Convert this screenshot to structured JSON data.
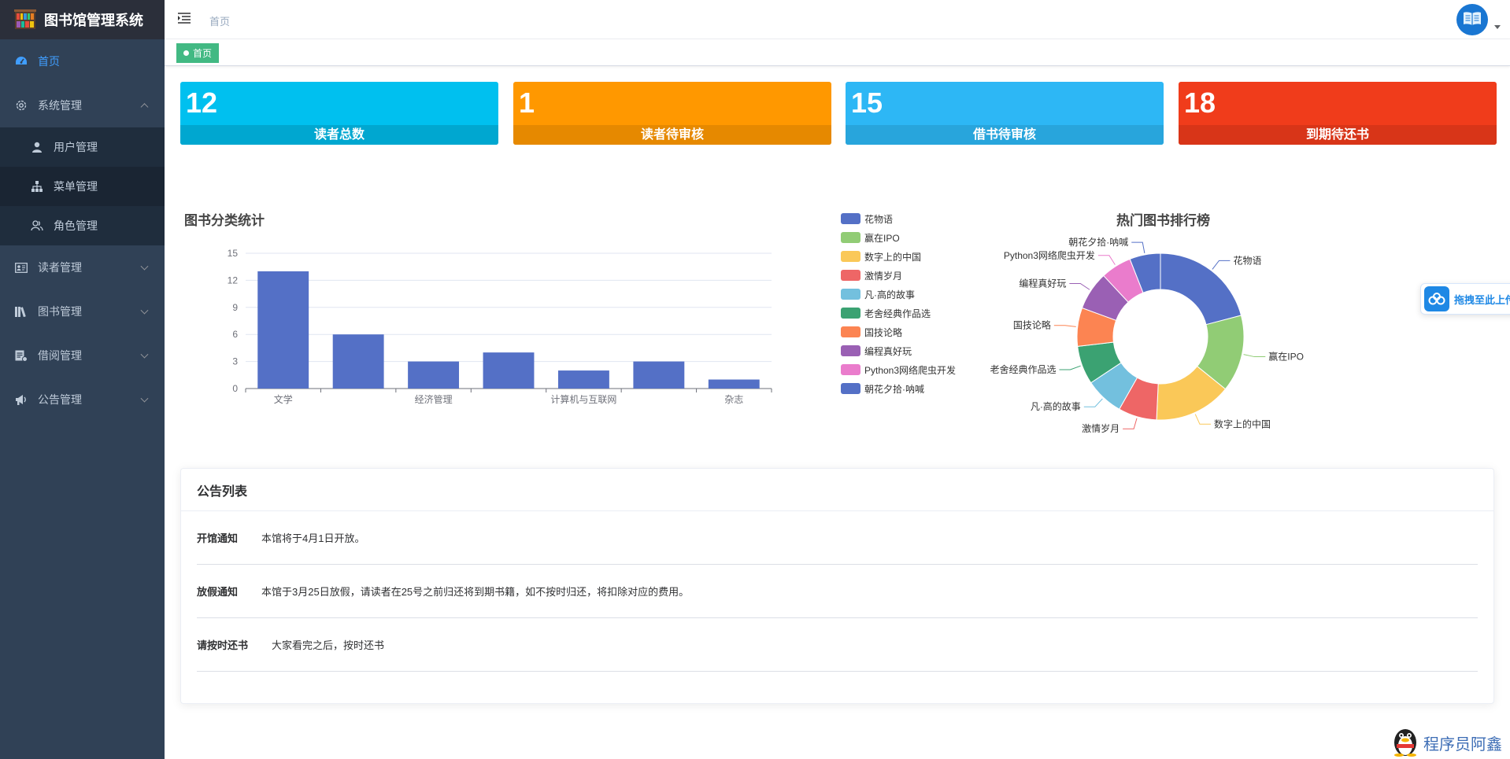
{
  "app": {
    "title": "图书馆管理系统"
  },
  "sidebar": {
    "items": [
      {
        "label": "首页",
        "icon": "dashboard-icon",
        "active": true
      },
      {
        "label": "系统管理",
        "icon": "gear-icon",
        "expanded": true,
        "children": [
          {
            "label": "用户管理",
            "icon": "user-icon"
          },
          {
            "label": "菜单管理",
            "icon": "tree-icon"
          },
          {
            "label": "角色管理",
            "icon": "people-icon"
          }
        ]
      },
      {
        "label": "读者管理",
        "icon": "reader-card-icon"
      },
      {
        "label": "图书管理",
        "icon": "books-icon"
      },
      {
        "label": "借阅管理",
        "icon": "borrow-icon"
      },
      {
        "label": "公告管理",
        "icon": "megaphone-icon"
      }
    ]
  },
  "navbar": {
    "breadcrumb": "首页",
    "avatar_icon": "book-icon"
  },
  "tags": [
    {
      "label": "首页",
      "active": true
    }
  ],
  "stats": [
    {
      "value": "12",
      "label": "读者总数",
      "color": "#00c0ef",
      "foot_color": "#00a7d0"
    },
    {
      "value": "1",
      "label": "读者待审核",
      "color": "#ff9800",
      "foot_color": "#e68900"
    },
    {
      "value": "15",
      "label": "借书待审核",
      "color": "#2db7f5",
      "foot_color": "#28a5dc"
    },
    {
      "value": "18",
      "label": "到期待还书",
      "color": "#f03c1b",
      "foot_color": "#d83518"
    }
  ],
  "bar_chart": {
    "title": "图书分类统计"
  },
  "pie_chart": {
    "title": "热门图书排行榜"
  },
  "chart_data": [
    {
      "type": "bar",
      "title": "图书分类统计",
      "categories": [
        "文学",
        "",
        "经济管理",
        "",
        "计算机与互联网",
        "",
        "杂志"
      ],
      "values": [
        13,
        6,
        3,
        4,
        2,
        3,
        1
      ],
      "ylim": [
        0,
        15
      ],
      "yticks": [
        0,
        3,
        6,
        9,
        12,
        15
      ],
      "color": "#5470c6",
      "grid": true
    },
    {
      "type": "pie",
      "title": "热门图书排行榜",
      "labels": [
        "花物语",
        "赢在IPO",
        "数字上的中国",
        "激情岁月",
        "凡·高的故事",
        "老舍经典作品选",
        "国技论略",
        "编程真好玩",
        "Python3网络爬虫开发",
        "朝花夕拾·呐喊"
      ],
      "values": [
        7,
        5,
        5,
        2.5,
        2.5,
        2.5,
        2.5,
        2.5,
        2,
        2
      ],
      "colors": [
        "#5470c6",
        "#91cc75",
        "#fac858",
        "#ee6666",
        "#73c0de",
        "#3ba272",
        "#fc8452",
        "#9a60b4",
        "#ea7ccc",
        "#5470c6"
      ],
      "donut": true,
      "legend": "left"
    }
  ],
  "upload_float": {
    "label": "拖拽至此上传"
  },
  "notices": {
    "title": "公告列表",
    "rows": [
      {
        "title": "开馆通知",
        "content": "本馆将于4月1日开放。"
      },
      {
        "title": "放假通知",
        "content": "本馆于3月25日放假，请读者在25号之前归还将到期书籍，如不按时归还，将扣除对应的费用。"
      },
      {
        "title": "请按时还书",
        "content": "大家看完之后，按时还书"
      }
    ]
  },
  "watermark": {
    "text": "程序员阿鑫"
  }
}
